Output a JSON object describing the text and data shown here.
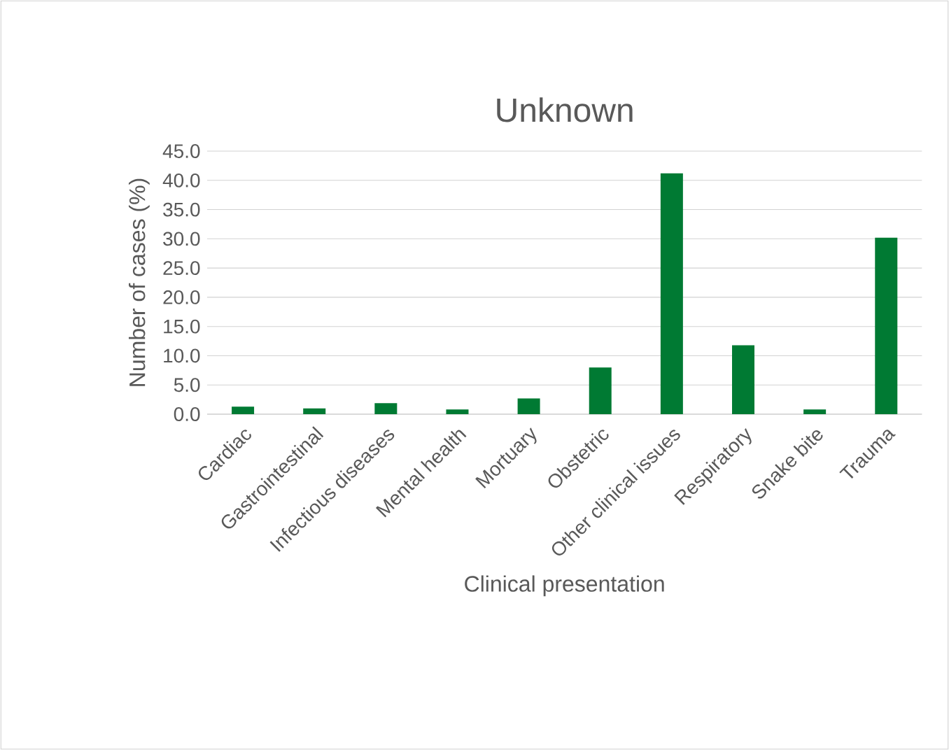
{
  "chart_data": {
    "type": "bar",
    "title": "Unknown",
    "xlabel": "Clinical presentation",
    "ylabel": "Number of cases (%)",
    "categories": [
      "Cardiac",
      "Gastrointestinal",
      "Infectious diseases",
      "Mental health",
      "Mortuary",
      "Obstetric",
      "Other clinical issues",
      "Respiratory",
      "Snake bite",
      "Trauma"
    ],
    "values": [
      1.3,
      1.0,
      1.9,
      0.8,
      2.7,
      8.0,
      41.2,
      11.8,
      0.8,
      30.2
    ],
    "color": "#007a33",
    "ylim": [
      0,
      45
    ],
    "yticks": [
      {
        "value": 0,
        "label": "0.0"
      },
      {
        "value": 5,
        "label": "5.0"
      },
      {
        "value": 10,
        "label": "10.0"
      },
      {
        "value": 15,
        "label": "15.0"
      },
      {
        "value": 20,
        "label": "20.0"
      },
      {
        "value": 25,
        "label": "25.0"
      },
      {
        "value": 30,
        "label": "30.0"
      },
      {
        "value": 35,
        "label": "35.0"
      },
      {
        "value": 40,
        "label": "40.0"
      },
      {
        "value": 45,
        "label": "45.0"
      }
    ],
    "grid": "y"
  }
}
